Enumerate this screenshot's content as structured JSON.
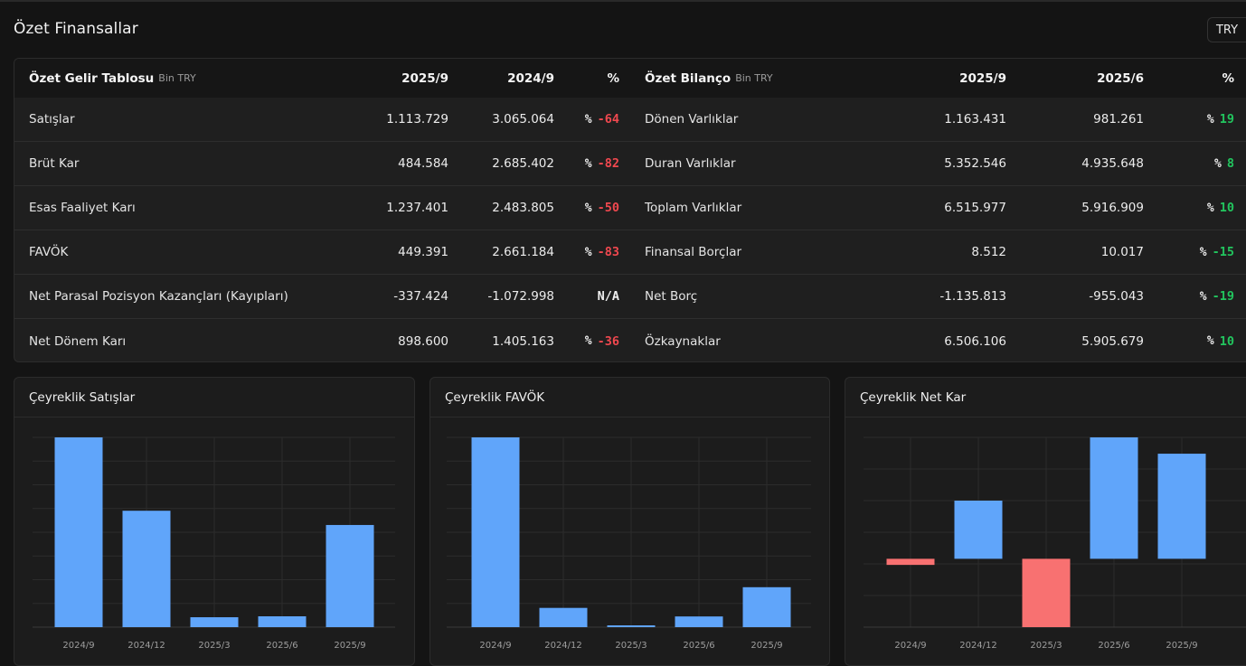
{
  "header": {
    "title": "Özet Finansallar",
    "currency": "TRY"
  },
  "income": {
    "title": "Özet Gelir Tablosu",
    "unit": "Bin TRY",
    "col1": "2025/9",
    "col2": "2024/9",
    "col3": "%",
    "rows": [
      {
        "label": "Satışlar",
        "v1": "1.113.729",
        "v2": "3.065.064",
        "sign": "%",
        "pct": "-64",
        "tone": "neg"
      },
      {
        "label": "Brüt Kar",
        "v1": "484.584",
        "v2": "2.685.402",
        "sign": "%",
        "pct": "-82",
        "tone": "neg"
      },
      {
        "label": "Esas Faaliyet Karı",
        "v1": "1.237.401",
        "v2": "2.483.805",
        "sign": "%",
        "pct": "-50",
        "tone": "neg"
      },
      {
        "label": "FAVÖK",
        "v1": "449.391",
        "v2": "2.661.184",
        "sign": "%",
        "pct": "-83",
        "tone": "neg"
      },
      {
        "label": "Net Parasal Pozisyon Kazançları (Kayıpları)",
        "v1": "-337.424",
        "v2": "-1.072.998",
        "sign": "",
        "pct": "N/A",
        "tone": "na"
      },
      {
        "label": "Net Dönem Karı",
        "v1": "898.600",
        "v2": "1.405.163",
        "sign": "%",
        "pct": "-36",
        "tone": "neg"
      }
    ]
  },
  "balance": {
    "title": "Özet Bilanço",
    "unit": "Bin TRY",
    "col1": "2025/9",
    "col2": "2025/6",
    "col3": "%",
    "rows": [
      {
        "label": "Dönen Varlıklar",
        "v1": "1.163.431",
        "v2": "981.261",
        "sign": "%",
        "pct": "19",
        "tone": "pos"
      },
      {
        "label": "Duran Varlıklar",
        "v1": "5.352.546",
        "v2": "4.935.648",
        "sign": "%",
        "pct": "8",
        "tone": "pos"
      },
      {
        "label": "Toplam Varlıklar",
        "v1": "6.515.977",
        "v2": "5.916.909",
        "sign": "%",
        "pct": "10",
        "tone": "pos"
      },
      {
        "label": "Finansal Borçlar",
        "v1": "8.512",
        "v2": "10.017",
        "sign": "%",
        "pct": "-15",
        "tone": "pos"
      },
      {
        "label": "Net Borç",
        "v1": "-1.135.813",
        "v2": "-955.043",
        "sign": "%",
        "pct": "-19",
        "tone": "pos"
      },
      {
        "label": "Özkaynaklar",
        "v1": "6.506.106",
        "v2": "5.905.679",
        "sign": "%",
        "pct": "10",
        "tone": "pos"
      }
    ]
  },
  "colors": {
    "bar_positive": "#60a5fa",
    "bar_negative": "#f87171",
    "pct_negative": "#f0484f",
    "pct_positive": "#22c55e"
  },
  "chart_data": [
    {
      "type": "bar",
      "title": "Çeyreklik Satışlar",
      "categories": [
        "2024/9",
        "2024/12",
        "2025/3",
        "2025/6",
        "2025/9"
      ],
      "values": [
        3065064,
        1880000,
        160000,
        175000,
        1650000
      ],
      "ylim": [
        0,
        3065064
      ],
      "grid": true
    },
    {
      "type": "bar",
      "title": "Çeyreklik FAVÖK",
      "categories": [
        "2024/9",
        "2024/12",
        "2025/3",
        "2025/6",
        "2025/9"
      ],
      "values": [
        2661184,
        270000,
        25000,
        150000,
        560000
      ],
      "ylim": [
        0,
        2661184
      ],
      "grid": true
    },
    {
      "type": "bar",
      "title": "Çeyreklik Net Kar",
      "categories": [
        "2024/9",
        "2024/12",
        "2025/3",
        "2025/6",
        "2025/9"
      ],
      "values": [
        -60000,
        570000,
        -670000,
        1190000,
        1030000
      ],
      "ylim": [
        -670000,
        1190000
      ],
      "grid": true
    }
  ]
}
